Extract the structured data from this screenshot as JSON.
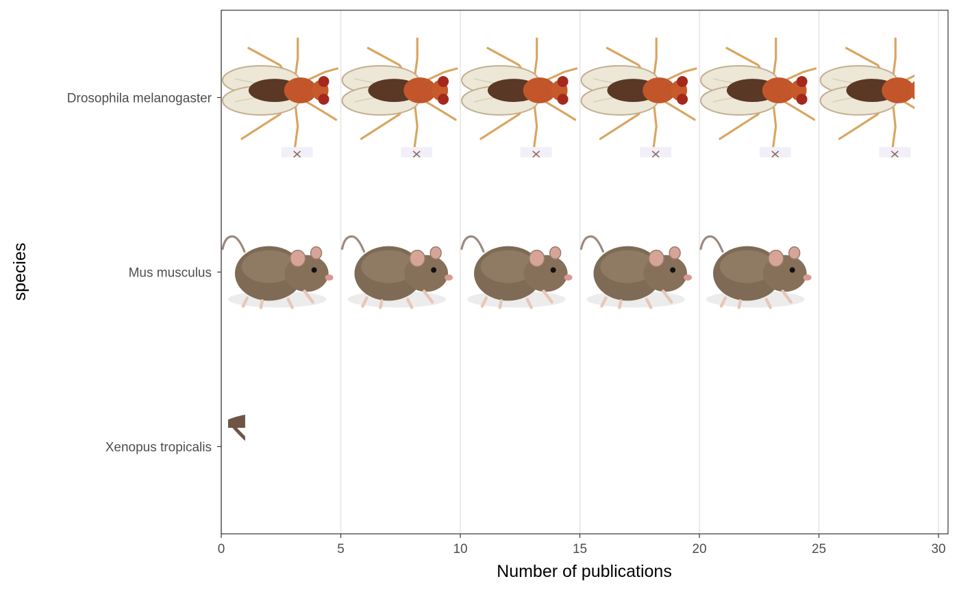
{
  "chart_data": {
    "type": "bar",
    "style": "pictograph",
    "xlabel": "Number of publications",
    "ylabel": "species",
    "xlim": [
      0,
      30.4
    ],
    "x_ticks": [
      "0",
      "5",
      "10",
      "15",
      "20",
      "25",
      "30"
    ],
    "categories": [
      "Drosophila melanogaster",
      "Mus musculus",
      "Xenopus tropicalis"
    ],
    "values": [
      29,
      25,
      1
    ],
    "units_per_icon": 5,
    "icons": [
      "fruit-fly-icon",
      "mouse-icon",
      "frog-icon"
    ],
    "grid": "vertical-major",
    "legend": "none",
    "colors": {
      "grid": "#ebebeb",
      "panel_border": "#333333",
      "tick_text": "#4d4d4d",
      "fly_body": "#c2562a",
      "fly_eye": "#a3291f",
      "fly_wing": "#e9e4d2",
      "fly_leg": "#d9a55f",
      "mouse_fur": "#7f6a55",
      "mouse_ear": "#d6a597"
    }
  }
}
